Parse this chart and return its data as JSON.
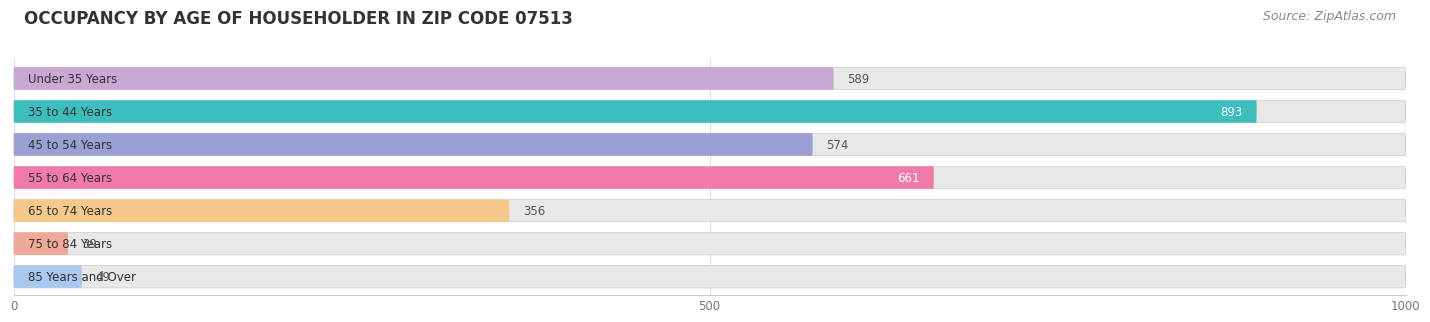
{
  "title": "OCCUPANCY BY AGE OF HOUSEHOLDER IN ZIP CODE 07513",
  "source": "Source: ZipAtlas.com",
  "categories": [
    "Under 35 Years",
    "35 to 44 Years",
    "45 to 54 Years",
    "55 to 64 Years",
    "65 to 74 Years",
    "75 to 84 Years",
    "85 Years and Over"
  ],
  "values": [
    589,
    893,
    574,
    661,
    356,
    39,
    49
  ],
  "bar_colors": [
    "#c9a8d4",
    "#3dbdbd",
    "#9b9fd4",
    "#f07aaa",
    "#f5c98a",
    "#f0a899",
    "#a8c8f0"
  ],
  "label_colors": [
    "#555555",
    "#ffffff",
    "#555555",
    "#ffffff",
    "#555555",
    "#555555",
    "#555555"
  ],
  "xlim": [
    0,
    1000
  ],
  "xticks": [
    0,
    500,
    1000
  ],
  "background_color": "#ffffff",
  "bar_bg_color": "#e8e8e8",
  "title_fontsize": 12,
  "source_fontsize": 9,
  "bar_height": 0.68,
  "label_fontsize": 8.5,
  "value_fontsize": 8.5
}
